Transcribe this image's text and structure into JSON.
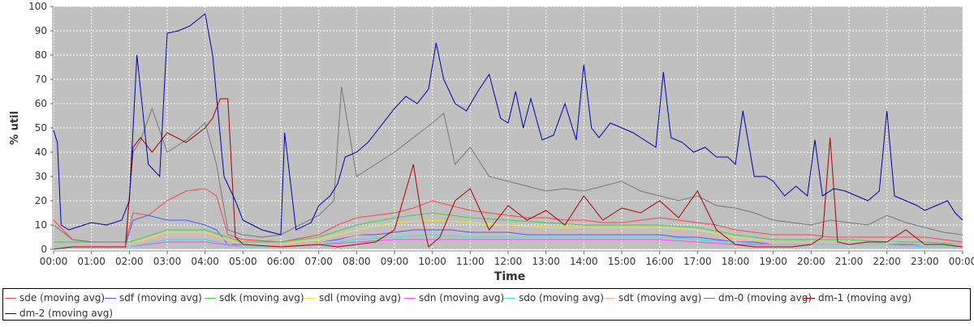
{
  "chart_data": {
    "type": "line",
    "title": "",
    "xlabel": "Time",
    "ylabel": "% util",
    "ylim": [
      0,
      100
    ],
    "yticks": [
      0,
      10,
      20,
      30,
      40,
      50,
      60,
      70,
      80,
      90,
      100
    ],
    "xlim": [
      0,
      24
    ],
    "xticks": [
      "00:00",
      "01:00",
      "02:00",
      "03:00",
      "04:00",
      "05:00",
      "06:00",
      "07:00",
      "08:00",
      "09:00",
      "10:00",
      "11:00",
      "12:00",
      "13:00",
      "14:00",
      "15:00",
      "16:00",
      "17:00",
      "18:00",
      "19:00",
      "20:00",
      "21:00",
      "22:00",
      "23:00",
      "00:00"
    ],
    "grid": true,
    "legend_position": "bottom",
    "series": [
      {
        "name": "sde (moving avg)",
        "color": "#ff4444",
        "x": [
          0,
          0.5,
          1,
          1.5,
          1.9,
          2.1,
          2.5,
          3,
          3.5,
          4,
          4.3,
          4.6,
          5,
          6,
          7,
          7.5,
          8,
          8.5,
          9,
          9.5,
          10,
          10.5,
          11,
          11.5,
          12,
          12.5,
          13,
          13.5,
          14,
          14.5,
          15,
          15.5,
          16,
          16.5,
          17,
          17.5,
          18,
          18.5,
          19,
          19.5,
          20,
          20.5,
          21,
          21.5,
          22,
          22.5,
          23,
          23.5,
          24
        ],
        "values": [
          12,
          4,
          3,
          3,
          3,
          15,
          14,
          20,
          24,
          25,
          22,
          6,
          4,
          3,
          6,
          10,
          13,
          14,
          15,
          17,
          20,
          18,
          16,
          15,
          14,
          13,
          13,
          12,
          12,
          11,
          11,
          12,
          13,
          12,
          11,
          10,
          8,
          7,
          6,
          6,
          6,
          5,
          5,
          5,
          5,
          5,
          5,
          4,
          3
        ]
      },
      {
        "name": "sdf (moving avg)",
        "color": "#4a5aff",
        "x": [
          0,
          0.5,
          1,
          1.5,
          1.9,
          2.1,
          2.5,
          3,
          3.5,
          4,
          4.3,
          4.6,
          5,
          6,
          7,
          7.5,
          8,
          8.5,
          9,
          9.5,
          10,
          10.5,
          11,
          11.5,
          12,
          12.5,
          13,
          13.5,
          14,
          14.5,
          15,
          15.5,
          16,
          16.5,
          17,
          17.5,
          18,
          18.5,
          19,
          19.5,
          20,
          20.5,
          21,
          21.5,
          22,
          22.5,
          23,
          23.5,
          24
        ],
        "values": [
          2,
          2,
          2,
          2,
          2,
          12,
          14,
          12,
          12,
          10,
          8,
          2,
          2,
          2,
          3,
          4,
          6,
          6,
          7,
          8,
          8,
          8,
          7,
          7,
          7,
          6,
          6,
          6,
          6,
          6,
          6,
          6,
          6,
          5,
          5,
          4,
          3,
          3,
          2,
          2,
          2,
          2,
          2,
          2,
          2,
          2,
          2,
          2,
          2
        ]
      },
      {
        "name": "sdk (moving avg)",
        "color": "#44cc44",
        "x": [
          0,
          1,
          2,
          3,
          4,
          5,
          6,
          7,
          8,
          9,
          10,
          11,
          12,
          13,
          14,
          15,
          16,
          17,
          18,
          19,
          20,
          21,
          22,
          23,
          24
        ],
        "values": [
          3,
          3,
          3,
          8,
          8,
          3,
          3,
          5,
          10,
          13,
          15,
          13,
          12,
          11,
          10,
          10,
          10,
          9,
          6,
          4,
          4,
          4,
          3,
          3,
          2
        ]
      },
      {
        "name": "sdl (moving avg)",
        "color": "#e6e644",
        "x": [
          0,
          1,
          2,
          3,
          4,
          5,
          6,
          7,
          8,
          9,
          10,
          11,
          12,
          13,
          14,
          15,
          16,
          17,
          18,
          19,
          20,
          21,
          22,
          23,
          24
        ],
        "values": [
          2,
          2,
          2,
          7,
          7,
          2,
          2,
          4,
          8,
          11,
          12,
          11,
          10,
          9,
          9,
          9,
          9,
          8,
          5,
          3,
          3,
          3,
          3,
          2,
          2
        ]
      },
      {
        "name": "sdn (moving avg)",
        "color": "#ff44ff",
        "x": [
          0,
          1,
          2,
          3,
          4,
          5,
          6,
          7,
          8,
          9,
          10,
          11,
          12,
          13,
          14,
          15,
          16,
          17,
          18,
          19,
          20,
          21,
          22,
          23,
          24
        ],
        "values": [
          1,
          1,
          1,
          3,
          3,
          1,
          1,
          2,
          3,
          4,
          4,
          4,
          4,
          4,
          4,
          4,
          4,
          3,
          2,
          2,
          2,
          2,
          2,
          1,
          1
        ]
      },
      {
        "name": "sdo (moving avg)",
        "color": "#44dddd",
        "x": [
          0,
          1,
          2,
          3,
          4,
          5,
          6,
          7,
          8,
          9,
          10,
          11,
          12,
          13,
          14,
          15,
          16,
          17,
          18,
          19,
          20,
          21,
          22,
          23,
          24
        ],
        "values": [
          1,
          1,
          1,
          4,
          4,
          1,
          1,
          2,
          4,
          5,
          6,
          5,
          5,
          5,
          5,
          5,
          5,
          4,
          3,
          2,
          2,
          2,
          2,
          1,
          1
        ]
      },
      {
        "name": "sdt (moving avg)",
        "color": "#ffaaaa",
        "x": [
          0,
          1,
          2,
          3,
          4,
          5,
          6,
          7,
          8,
          9,
          10,
          11,
          12,
          13,
          14,
          15,
          16,
          17,
          18,
          19,
          20,
          21,
          22,
          23,
          24
        ],
        "values": [
          2,
          2,
          2,
          6,
          6,
          2,
          2,
          3,
          6,
          8,
          9,
          8,
          8,
          7,
          7,
          7,
          7,
          6,
          4,
          3,
          3,
          3,
          3,
          2,
          2
        ]
      },
      {
        "name": "dm-0 (moving avg)",
        "color": "#777777",
        "x": [
          0,
          0.5,
          1,
          1.5,
          1.9,
          2.1,
          2.3,
          2.6,
          3,
          3.5,
          4,
          4.3,
          4.6,
          5,
          5.5,
          6,
          6.5,
          7,
          7.4,
          7.6,
          8,
          8.5,
          9,
          9.5,
          10,
          10.3,
          10.6,
          11,
          11.5,
          12,
          12.5,
          13,
          13.5,
          14,
          14.5,
          15,
          15.5,
          16,
          16.5,
          17,
          17.5,
          18,
          18.5,
          19,
          19.5,
          20,
          20.5,
          21,
          21.5,
          22,
          22.5,
          23,
          23.5,
          24
        ],
        "values": [
          10,
          4,
          3,
          3,
          3,
          40,
          45,
          58,
          40,
          45,
          52,
          35,
          8,
          6,
          5,
          6,
          10,
          14,
          20,
          67,
          30,
          35,
          40,
          46,
          52,
          56,
          35,
          42,
          30,
          28,
          26,
          24,
          25,
          24,
          26,
          28,
          24,
          22,
          20,
          22,
          18,
          17,
          15,
          12,
          11,
          10,
          12,
          11,
          10,
          14,
          11,
          9,
          7,
          6
        ]
      },
      {
        "name": "dm-1 (moving avg)",
        "color": "#aa0000",
        "x": [
          0,
          0.5,
          1,
          1.5,
          1.9,
          2.1,
          2.3,
          2.6,
          3,
          3.5,
          4,
          4.2,
          4.4,
          4.6,
          4.8,
          5,
          6,
          7,
          7.5,
          8,
          8.5,
          9,
          9.5,
          9.7,
          9.9,
          10.2,
          10.6,
          11,
          11.5,
          12,
          12.5,
          13,
          13.5,
          14,
          14.5,
          15,
          15.5,
          16,
          16.5,
          17,
          17.5,
          18,
          18.5,
          19,
          19.5,
          20,
          20.3,
          20.5,
          20.7,
          21,
          21.5,
          22,
          22.5,
          23,
          23.5,
          24
        ],
        "values": [
          0,
          1,
          1,
          1,
          1,
          42,
          46,
          40,
          48,
          44,
          50,
          54,
          62,
          62,
          5,
          2,
          1,
          2,
          1,
          2,
          3,
          8,
          35,
          15,
          1,
          5,
          20,
          25,
          8,
          18,
          12,
          16,
          10,
          22,
          12,
          17,
          15,
          20,
          13,
          24,
          8,
          2,
          1,
          1,
          1,
          2,
          5,
          46,
          3,
          2,
          3,
          3,
          8,
          2,
          2,
          1
        ]
      },
      {
        "name": "dm-2 (moving avg)",
        "color": "#0000aa",
        "x": [
          0,
          0.1,
          0.2,
          0.4,
          0.6,
          1,
          1.4,
          1.8,
          2,
          2.2,
          2.5,
          2.8,
          3,
          3.3,
          3.6,
          4,
          4.2,
          4.5,
          4.8,
          5,
          5.5,
          6,
          6.1,
          6.4,
          6.8,
          7,
          7.3,
          7.5,
          7.7,
          8,
          8.3,
          8.5,
          9,
          9.3,
          9.6,
          9.9,
          10.1,
          10.3,
          10.6,
          10.9,
          11.2,
          11.5,
          11.8,
          12,
          12.2,
          12.4,
          12.6,
          12.9,
          13.2,
          13.5,
          13.8,
          14,
          14.2,
          14.4,
          14.7,
          15,
          15.3,
          15.6,
          15.9,
          16.1,
          16.3,
          16.6,
          16.9,
          17.2,
          17.5,
          17.8,
          18,
          18.2,
          18.5,
          18.8,
          19,
          19.3,
          19.6,
          19.9,
          20.1,
          20.3,
          20.6,
          20.9,
          21.2,
          21.5,
          21.8,
          22,
          22.2,
          22.5,
          22.8,
          23,
          23.3,
          23.6,
          23.8,
          24
        ],
        "values": [
          49,
          44,
          10,
          8,
          9,
          11,
          10,
          12,
          20,
          80,
          35,
          30,
          89,
          90,
          92,
          97,
          80,
          30,
          20,
          12,
          8,
          6,
          48,
          8,
          11,
          18,
          22,
          27,
          38,
          40,
          44,
          48,
          58,
          63,
          60,
          66,
          85,
          70,
          60,
          57,
          65,
          72,
          54,
          52,
          65,
          50,
          62,
          45,
          47,
          60,
          45,
          76,
          50,
          46,
          52,
          50,
          48,
          45,
          42,
          73,
          46,
          44,
          40,
          42,
          38,
          38,
          35,
          57,
          30,
          30,
          28,
          22,
          26,
          22,
          45,
          22,
          25,
          24,
          22,
          20,
          24,
          57,
          22,
          20,
          18,
          16,
          18,
          20,
          15,
          12
        ]
      }
    ]
  }
}
